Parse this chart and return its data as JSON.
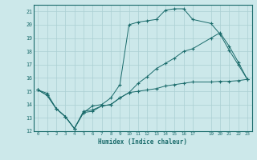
{
  "title": "",
  "xlabel": "Humidex (Indice chaleur)",
  "background_color": "#cce8ea",
  "grid_color": "#aacfd2",
  "line_color": "#1a6b6b",
  "xlim": [
    -0.5,
    23.5
  ],
  "ylim": [
    12,
    21.5
  ],
  "xticks": [
    0,
    1,
    2,
    3,
    4,
    5,
    6,
    7,
    8,
    9,
    10,
    11,
    12,
    13,
    14,
    15,
    16,
    17,
    19,
    20,
    21,
    22,
    23
  ],
  "yticks": [
    12,
    13,
    14,
    15,
    16,
    17,
    18,
    19,
    20,
    21
  ],
  "curve1_x": [
    0,
    1,
    2,
    3,
    4,
    5,
    6,
    7,
    8,
    9,
    10,
    11,
    12,
    13,
    14,
    15,
    16,
    17,
    19,
    20,
    21,
    22,
    23
  ],
  "curve1_y": [
    15.1,
    14.7,
    13.7,
    13.1,
    12.2,
    13.4,
    13.5,
    13.9,
    14.0,
    14.5,
    14.9,
    15.6,
    16.1,
    16.7,
    17.1,
    17.5,
    18.0,
    18.2,
    19.0,
    19.4,
    18.4,
    17.2,
    15.9
  ],
  "curve2_x": [
    0,
    1,
    2,
    3,
    4,
    5,
    6,
    7,
    8,
    9,
    10,
    11,
    12,
    13,
    14,
    15,
    16,
    17,
    19,
    20,
    21,
    22,
    23
  ],
  "curve2_y": [
    15.1,
    14.7,
    13.7,
    13.1,
    12.2,
    13.4,
    13.9,
    14.0,
    14.5,
    15.5,
    20.0,
    20.2,
    20.3,
    20.4,
    21.1,
    21.2,
    21.2,
    20.4,
    20.1,
    19.3,
    18.1,
    17.0,
    15.9
  ],
  "curve3_x": [
    0,
    1,
    2,
    3,
    4,
    5,
    6,
    7,
    8,
    9,
    10,
    11,
    12,
    13,
    14,
    15,
    16,
    17,
    19,
    20,
    21,
    22,
    23
  ],
  "curve3_y": [
    15.1,
    14.85,
    13.7,
    13.1,
    12.2,
    13.5,
    13.6,
    13.9,
    14.0,
    14.5,
    14.9,
    15.0,
    15.1,
    15.2,
    15.4,
    15.5,
    15.6,
    15.7,
    15.7,
    15.75,
    15.75,
    15.8,
    15.9
  ]
}
